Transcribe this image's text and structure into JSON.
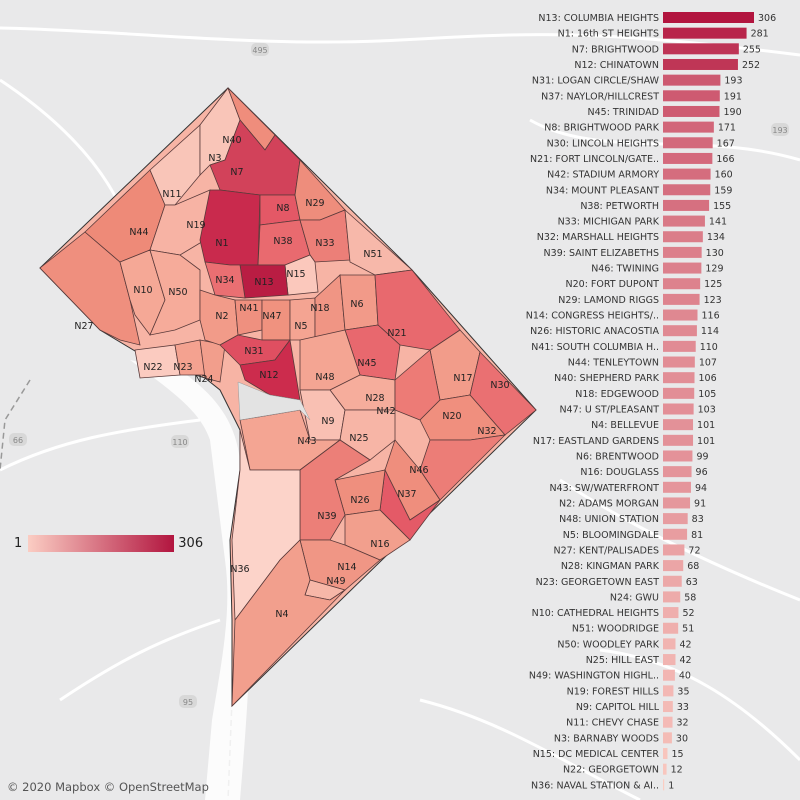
{
  "attribution": "© 2020 Mapbox © OpenStreetMap",
  "legend": {
    "min": "1",
    "max": "306",
    "color_low": "#fbcdc3",
    "color_high": "#b2153f"
  },
  "road_shields": [
    "495",
    "193",
    "66",
    "110",
    "95"
  ],
  "map_label_neighborhoods": [
    "N1",
    "N2",
    "N3",
    "N4",
    "N5",
    "N6",
    "N7",
    "N8",
    "N9",
    "N10",
    "N11",
    "N12",
    "N13",
    "N14",
    "N15",
    "N16",
    "N17",
    "N18",
    "N19",
    "N20",
    "N21",
    "N22",
    "N23",
    "N24",
    "N25",
    "N26",
    "N27",
    "N28",
    "N29",
    "N31",
    "N32",
    "N33",
    "N34",
    "N36",
    "N37",
    "N38",
    "N39",
    "N40",
    "N41",
    "N42",
    "N43",
    "N44",
    "N45",
    "N46",
    "N47",
    "N48",
    "N49",
    "N50",
    "N51",
    "N30"
  ],
  "chart_data": {
    "type": "bar",
    "orientation": "horizontal",
    "color_scale": {
      "min": 1,
      "max": 306,
      "low": "#fbcdc3",
      "high": "#b2153f"
    },
    "categories": [
      "N13: COLUMBIA HEIGHTS",
      "N1: 16th ST HEIGHTS",
      "N7: BRIGHTWOOD",
      "N12: CHINATOWN",
      "N31: LOGAN CIRCLE/SHAW",
      "N37: NAYLOR/HILLCREST",
      "N45: TRINIDAD",
      "N8: BRIGHTWOOD PARK",
      "N30: LINCOLN HEIGHTS",
      "N21: FORT LINCOLN/GATE..",
      "N42: STADIUM ARMORY",
      "N34: MOUNT PLEASANT",
      "N38: PETWORTH",
      "N33: MICHIGAN PARK",
      "N32: MARSHALL HEIGHTS",
      "N39: SAINT ELIZABETHS",
      "N46: TWINING",
      "N20: FORT DUPONT",
      "N29: LAMOND RIGGS",
      "N14: CONGRESS HEIGHTS/..",
      "N26: HISTORIC ANACOSTIA",
      "N41: SOUTH COLUMBIA H..",
      "N44: TENLEYTOWN",
      "N40: SHEPHERD PARK",
      "N18: EDGEWOOD",
      "N47: U ST/PLEASANT",
      "N4: BELLEVUE",
      "N17: EASTLAND GARDENS",
      "N6: BRENTWOOD",
      "N16: DOUGLASS",
      "N43: SW/WATERFRONT",
      "N2: ADAMS MORGAN",
      "N48: UNION STATION",
      "N5: BLOOMINGDALE",
      "N27: KENT/PALISADES",
      "N28: KINGMAN PARK",
      "N23: GEORGETOWN EAST",
      "N24: GWU",
      "N10: CATHEDRAL HEIGHTS",
      "N51: WOODRIDGE",
      "N50: WOODLEY PARK",
      "N25: HILL EAST",
      "N49: WASHINGTON HIGHL..",
      "N19: FOREST HILLS",
      "N9: CAPITOL HILL",
      "N11: CHEVY CHASE",
      "N3: BARNABY WOODS",
      "N15: DC MEDICAL CENTER",
      "N22: GEORGETOWN",
      "N36: NAVAL STATION & AI.."
    ],
    "values": [
      306,
      281,
      255,
      252,
      193,
      191,
      190,
      171,
      167,
      166,
      160,
      159,
      155,
      141,
      134,
      130,
      129,
      125,
      123,
      116,
      114,
      110,
      107,
      106,
      105,
      103,
      101,
      101,
      99,
      96,
      94,
      91,
      83,
      81,
      72,
      68,
      63,
      58,
      52,
      51,
      42,
      42,
      40,
      35,
      33,
      32,
      30,
      15,
      12,
      1
    ],
    "xlim": [
      0,
      306
    ]
  }
}
